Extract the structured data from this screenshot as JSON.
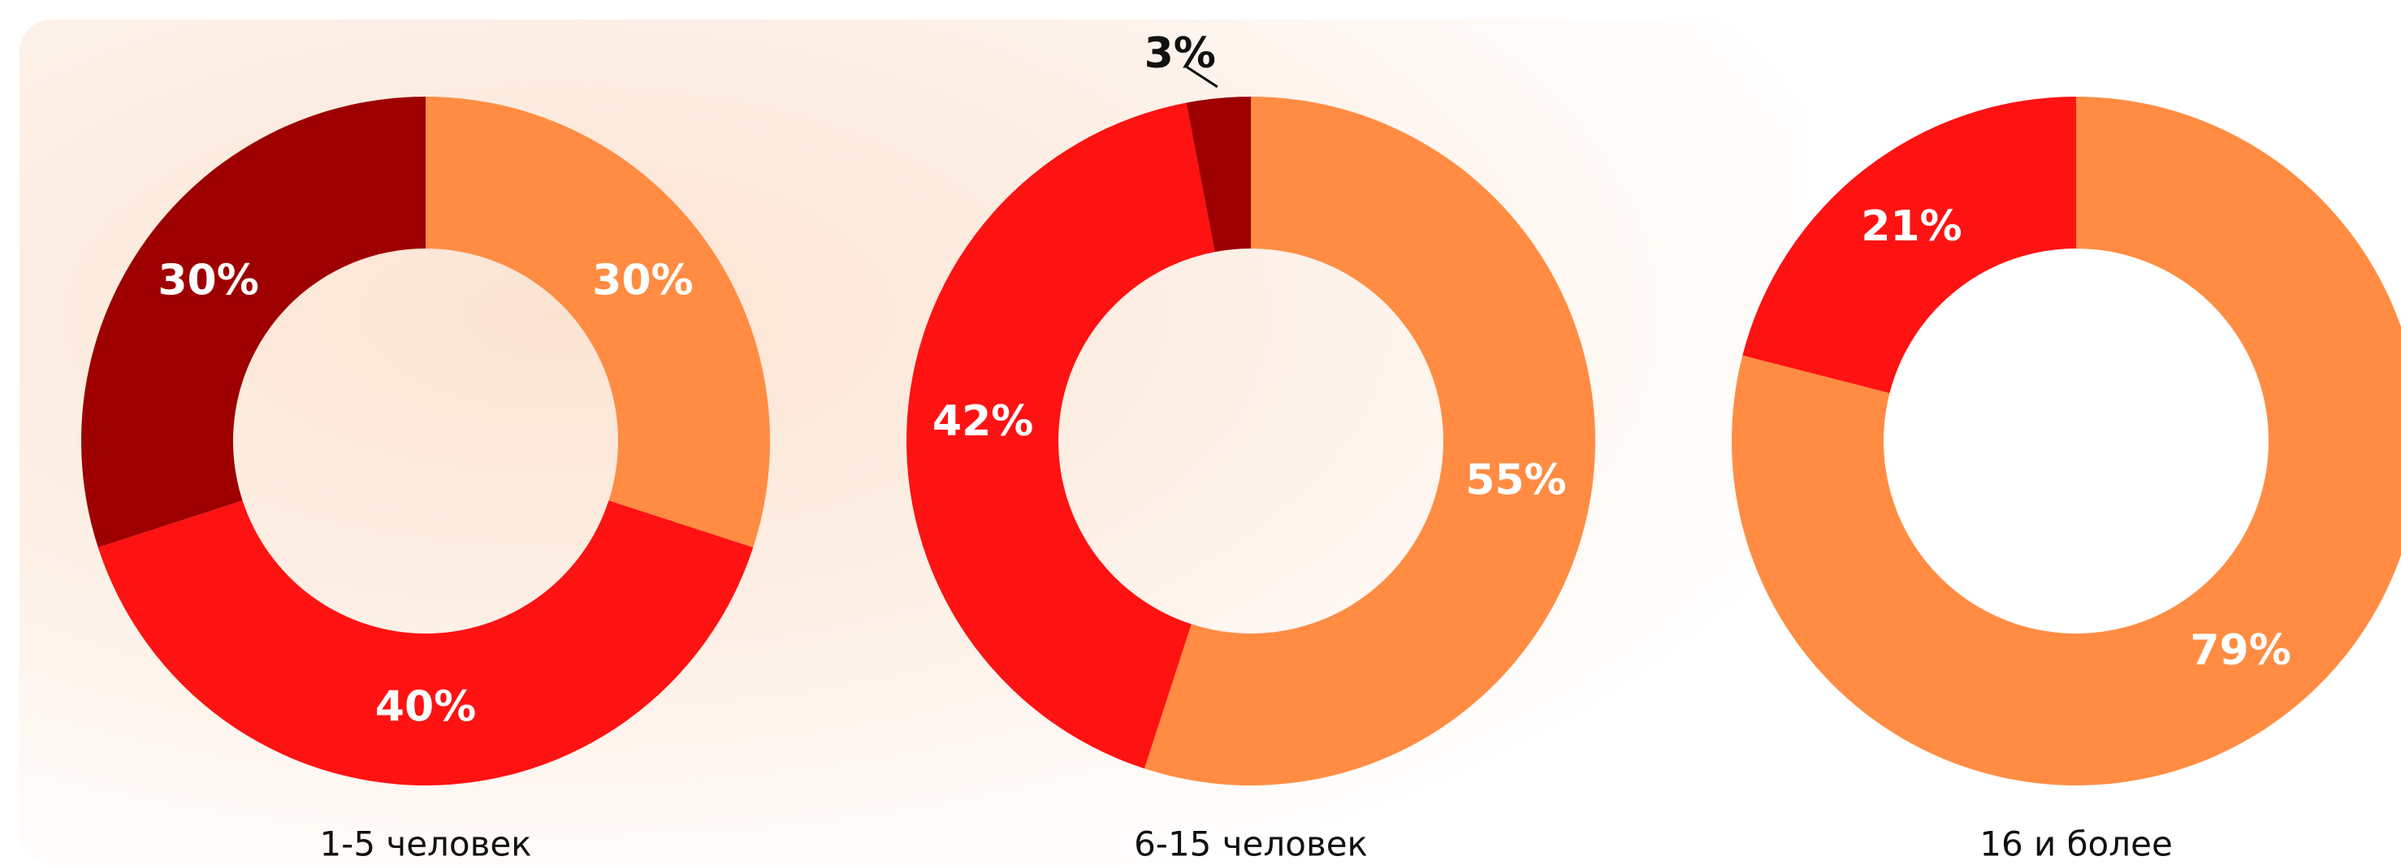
{
  "chart_data": [
    {
      "type": "pie",
      "donut": true,
      "title": "1-5 человек",
      "values": [
        30,
        40,
        30
      ],
      "value_labels": [
        "30%",
        "40%",
        "30%"
      ],
      "colors": [
        "#ff8c42",
        "#ff1212",
        "#9e0000"
      ]
    },
    {
      "type": "pie",
      "donut": true,
      "title": "6-15 человек",
      "values": [
        55,
        42,
        3
      ],
      "value_labels": [
        "55%",
        "42%",
        "3%"
      ],
      "colors": [
        "#ff8c42",
        "#ff1212",
        "#9e0000"
      ]
    },
    {
      "type": "pie",
      "donut": true,
      "title": "16 и более",
      "values": [
        79,
        21
      ],
      "value_labels": [
        "79%",
        "21%"
      ],
      "colors": [
        "#ff8c42",
        "#ff1212"
      ]
    }
  ]
}
